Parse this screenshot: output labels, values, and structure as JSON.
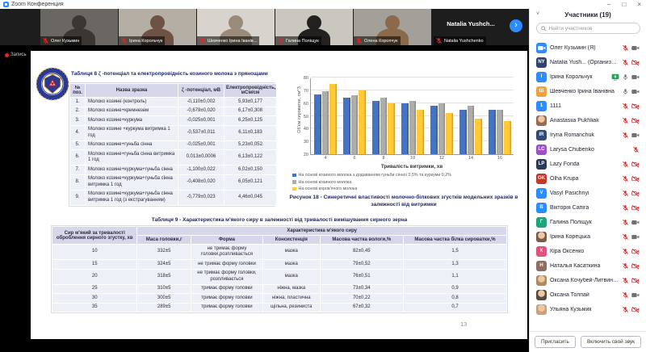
{
  "window": {
    "title": "Zoom Конференция"
  },
  "icons": {
    "minimize": "–",
    "maximize": "□",
    "close": "×",
    "next_arrow": "›",
    "collapse_chevron": "˅"
  },
  "recording": {
    "label": "Запись"
  },
  "video_strip": {
    "thumbnails": [
      {
        "name": "Олег Кузьмин",
        "bg": "#6a6661",
        "person": "#3a3633"
      },
      {
        "name": "Ірина Корольчук",
        "bg": "#b5aea4",
        "person": "#6e5246"
      },
      {
        "name": "Шевченко Ірина Іванів...",
        "bg": "#d8d4cd",
        "person": "#9a8a7a"
      },
      {
        "name": "Галина Поліщук",
        "bg": "#cac7c0",
        "person": "#23211f"
      },
      {
        "name": "Олена Коропчук",
        "bg": "#a39f99",
        "person": "#8a6a4a"
      }
    ],
    "more_participant_display": "Natalia Yushch...",
    "more_participant_label": "Natalia Yushchenko"
  },
  "slide": {
    "table8": {
      "title": "Таблиця 8  ζ -потенціал та електропровідність козиного молока з прянощами",
      "columns": [
        "№ поз.",
        "Назва зразка",
        "ζ -потенціал, мВ",
        "Електропровідність, мСм/см"
      ],
      "rows": [
        [
          "1.",
          "Молоко козине (контроль)",
          "-0,110±0,002",
          "5,93±0,177"
        ],
        [
          "2.",
          "Молоко козине+кремнезем",
          "-0,679±0,020",
          "6,17±0,308"
        ],
        [
          "3.",
          "Молоко козине+куркума",
          "-0,025±0,001",
          "6,25±0,125"
        ],
        [
          "4.",
          "Молоко козине +куркума витримка 1 год",
          "-0,537±0,011",
          "6,11±0,183"
        ],
        [
          "5.",
          "Молоко козине+гуньба сінна",
          "-0,025±0,001",
          "5,23±0,052"
        ],
        [
          "6.",
          "Молоко козине+гуньба сінна витримка 1 год",
          "0,013±0,0006",
          "6,13±0,122"
        ],
        [
          "7.",
          "Молоко козине+куркума+гуньба сінна",
          "-1,100±0,022",
          "6,02±0,150"
        ],
        [
          "8.",
          "Молоко козине+куркума+гуньба сінна витримка 1 год",
          "-0,408±0,020",
          "6,05±0,121"
        ],
        [
          "9.",
          "Молоко козине+куркума+гуньба сінна витримка 1 год (з екстрагуванням)",
          "-0,779±0,023",
          "4,46±0,045"
        ]
      ]
    },
    "figure_caption": "Рисунок 18 - Синеретичні властивості молочно-білкових згустків модельних зразків в залежності від витримки",
    "table9": {
      "title": "Таблиця 9 - Характеристика м'якого сиру в залежності від тривалості вимішування сирного зерна",
      "col1_header": "Сир м'який за тривалості оброблення сирного згустку, хв",
      "group_header": "Характеристика м'якого сиру",
      "sub_columns": [
        "Маса головки,г",
        "Форма",
        "Консистенція",
        "Масова частка вологи,%",
        "Масова частка білка сироватки,%"
      ],
      "rows": [
        [
          "10",
          "332±5",
          "не тримає форму головки,розпливається",
          "мазка",
          "82±0,45",
          "1,5"
        ],
        [
          "15",
          "324±5",
          "не тримає форму головки",
          "мазка",
          "79±0,52",
          "1,3"
        ],
        [
          "20",
          "318±5",
          "не тримає форму головки, розпливається",
          "мазка",
          "76±0,51",
          "1,1"
        ],
        [
          "25",
          "310±5",
          "тримає форму головки",
          "ніжна, мазка",
          "73±0,34",
          "0,9"
        ],
        [
          "30",
          "300±5",
          "тримає форму головки",
          "ніжна, пластична",
          "70±0,22",
          "0,8"
        ],
        [
          "35",
          "289±5",
          "тримає форму головки",
          "щільна, резиниста",
          "67±0,32",
          "0,7"
        ]
      ]
    },
    "page_number": "13"
  },
  "chart_data": {
    "type": "bar",
    "categories": [
      "4",
      "6",
      "8",
      "10",
      "12",
      "14",
      "16"
    ],
    "series": [
      {
        "name": "На основі козиного молока з додаванням гуньби сінної 0,5% та куркуми 0,2%",
        "color": "#4472C4",
        "values": [
          67,
          64,
          62,
          60,
          58,
          55,
          55
        ]
      },
      {
        "name": "На основі козиного молока",
        "color": "#ADADAD",
        "values": [
          69,
          66,
          64,
          62,
          60,
          58,
          55
        ]
      },
      {
        "name": "На основі коров'ячого молока",
        "color": "#FFC93A",
        "values": [
          75,
          70,
          60,
          55,
          52,
          48,
          46
        ]
      }
    ],
    "title": "Рисунок 18 - Синеретичні властивості молочно-білкових згустків модельних зразків в залежності від витримки",
    "xlabel": "Тривалість витримки, хв",
    "ylabel": "Об'єм сироватки, см^3",
    "ylim": [
      20,
      80
    ],
    "ytick_step": 10,
    "grid": true,
    "legend_position": "bottom"
  },
  "participants_panel": {
    "title": "Участники (19)",
    "search_placeholder": "Найти участников",
    "invite_button": "Пригласить",
    "unmute_button": "Включить свой звук",
    "participants": [
      {
        "name": "Олег Кузьмин (Я)",
        "avatar": "zoom",
        "color": "#2D8CFF",
        "mic": "muted",
        "cam": "on"
      },
      {
        "name": "Natalia Yush... (Организатор)",
        "avatar": "NY",
        "color": "#32436e",
        "mic": "muted",
        "cam": "off"
      },
      {
        "name": "Ірина Корольчук",
        "avatar": "І",
        "color": "#2D8CFF",
        "share": true,
        "mic": "on",
        "cam": "on"
      },
      {
        "name": "Шевченко Ірина Іванівна",
        "avatar": "Ш",
        "color": "#f0a03c",
        "mic": "on",
        "cam": "on"
      },
      {
        "name": "1111",
        "avatar": "1",
        "color": "#2D8CFF",
        "mic": "muted",
        "cam": "off"
      },
      {
        "name": "Anastasiia Pukhliak",
        "avatar": "photo",
        "color": "#9a6a4f",
        "mic": "muted",
        "cam": "off"
      },
      {
        "name": "Iryna Romanchuk",
        "avatar": "IR",
        "color": "#2f4a7d",
        "mic": "muted",
        "cam": "on"
      },
      {
        "name": "Larysa Chubenko",
        "avatar": "LC",
        "color": "#9b51c9",
        "mic": "muted",
        "cam": "none"
      },
      {
        "name": "Lazy Fonda",
        "avatar": "LP",
        "color": "#2c3a55",
        "mic": "muted",
        "cam": "off"
      },
      {
        "name": "Olha Krupa",
        "avatar": "OK",
        "color": "#c0392b",
        "mic": "muted",
        "cam": "off"
      },
      {
        "name": "Vasyl Pasichnyi",
        "avatar": "V",
        "color": "#2D8CFF",
        "mic": "muted",
        "cam": "off"
      },
      {
        "name": "Вікторія Сапіга",
        "avatar": "В",
        "color": "#2D8CFF",
        "mic": "muted",
        "cam": "off"
      },
      {
        "name": "Галина Поліщук",
        "avatar": "Г",
        "color": "#1fa37a",
        "mic": "muted",
        "cam": "on"
      },
      {
        "name": "Ірина Корецька",
        "avatar": "photo",
        "color": "#7d5a44",
        "mic": "muted",
        "cam": "on"
      },
      {
        "name": "Кіра Оксенко",
        "avatar": "К",
        "color": "#e0527c",
        "mic": "muted",
        "cam": "off"
      },
      {
        "name": "Наталья Касаткина",
        "avatar": "Н",
        "color": "#8d6e63",
        "mic": "muted",
        "cam": "off"
      },
      {
        "name": "Оксана Кочубей-Литвиненко",
        "avatar": "photo",
        "color": "#b08a5a",
        "mic": "muted",
        "cam": "off"
      },
      {
        "name": "Оксана Толпай",
        "avatar": "photo",
        "color": "#5a4a3a",
        "mic": "muted",
        "cam": "on"
      },
      {
        "name": "Ульяна Кузьмик",
        "avatar": "photo",
        "color": "#caa27a",
        "mic": "muted",
        "cam": "off"
      }
    ]
  }
}
